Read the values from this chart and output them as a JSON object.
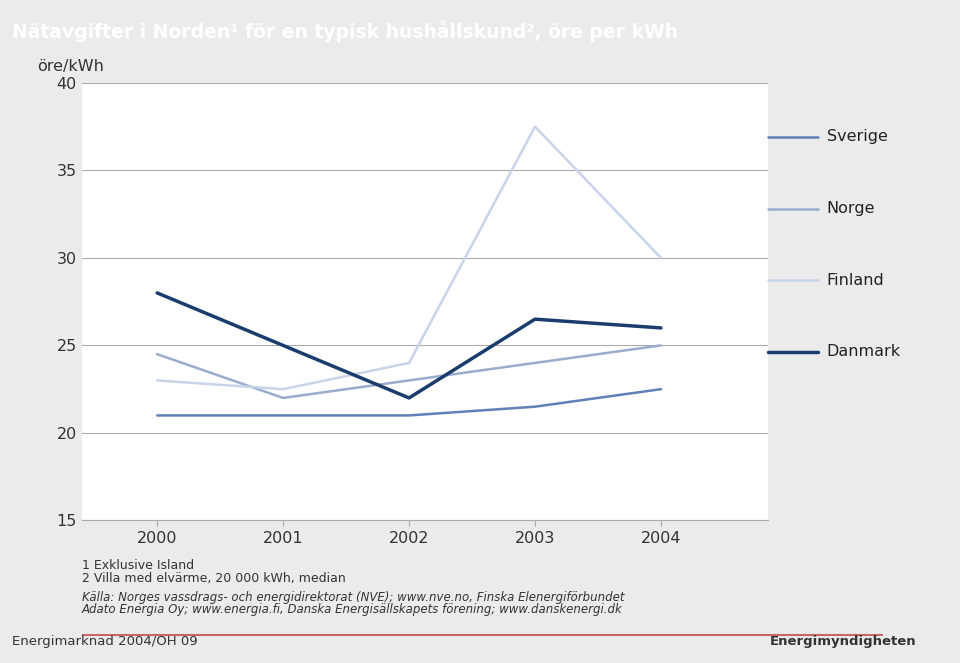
{
  "title": "Nätavgifter i Norden¹ för en typisk hushållskund², öre per kWh",
  "ylabel": "öre/kWh",
  "years": [
    2000,
    2001,
    2002,
    2003,
    2004
  ],
  "series": {
    "Sverige": [
      21.0,
      21.0,
      21.0,
      21.5,
      22.5
    ],
    "Norge": [
      24.5,
      22.0,
      23.0,
      24.0,
      25.0
    ],
    "Finland": [
      23.0,
      22.5,
      24.0,
      37.5,
      30.0
    ],
    "Danmark": [
      28.0,
      25.0,
      22.0,
      26.5,
      26.0
    ]
  },
  "colors": {
    "Sverige": "#6080b8",
    "Norge": "#9aaccc",
    "Finland": "#c8d4e8",
    "Danmark": "#1a3d6e"
  },
  "linewidths": {
    "Sverige": 1.8,
    "Norge": 1.8,
    "Finland": 1.8,
    "Danmark": 2.5
  },
  "ylim": [
    15,
    40
  ],
  "yticks": [
    15,
    20,
    25,
    30,
    35,
    40
  ],
  "header_color": "#5b7eb5",
  "header_text_color": "#ffffff",
  "bg_color": "#ebebeb",
  "plot_bg_color": "#ffffff",
  "chart_border_color": "#c8c8c8",
  "grid_color": "#aaaaaa",
  "footer_line1": "1 Exklusive Island",
  "footer_line2": "2 Villa med elvärme, 20 000 kWh, median",
  "footer_line3": "Källa: Norges vassdrags- och energidirektorat (NVE); www.nve.no, Finska Elenergiförbundet",
  "footer_line4": "Adato Energia Oy; www.energia.fi, Danska Energisällskapets förening; www.danskenergi.dk",
  "bottom_label": "Energimarknad 2004/OH 09",
  "bottom_label_right": "Energimyndigheten",
  "separator_color": "#c8888888"
}
